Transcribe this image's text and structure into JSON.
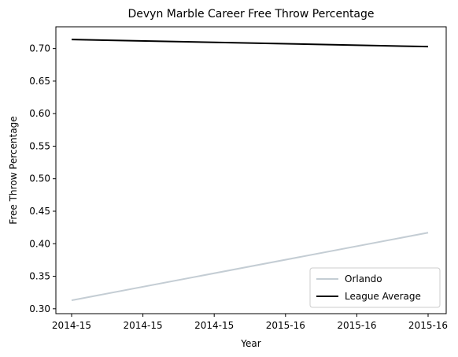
{
  "chart_data": {
    "type": "line",
    "title": "Devyn Marble Career Free Throw Percentage",
    "xlabel": "Year",
    "ylabel": "Free Throw Percentage",
    "x_tick_labels": [
      "2014-15",
      "2014-15",
      "2014-15",
      "2015-16",
      "2015-16",
      "2015-16"
    ],
    "x": [
      "2014-15",
      "2015-16"
    ],
    "ylim": [
      0.2925,
      0.7335
    ],
    "y_ticks": [
      0.3,
      0.35,
      0.4,
      0.45,
      0.5,
      0.55,
      0.6,
      0.65,
      0.7
    ],
    "y_tick_labels": [
      "0.30",
      "0.35",
      "0.40",
      "0.45",
      "0.50",
      "0.55",
      "0.60",
      "0.65",
      "0.70"
    ],
    "grid": false,
    "legend_position": "bottom-right",
    "series": [
      {
        "name": "Orlando",
        "color": "#c4cdd4",
        "values": [
          0.313,
          0.417
        ]
      },
      {
        "name": "League Average",
        "color": "#000000",
        "values": [
          0.714,
          0.703
        ]
      }
    ]
  }
}
